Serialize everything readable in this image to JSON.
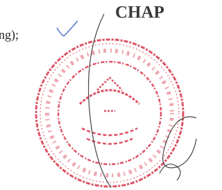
{
  "header": {
    "title": "CHAP"
  },
  "body": {
    "text": "ng);"
  }
}
